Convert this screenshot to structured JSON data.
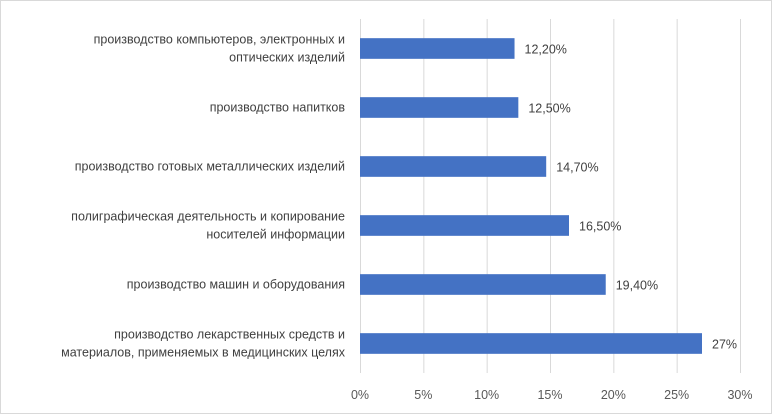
{
  "chart_data": {
    "type": "bar",
    "orientation": "horizontal",
    "title": "",
    "xlabel": "",
    "ylabel": "",
    "categories": [
      [
        "производство компьютеров, электронных и",
        "оптических изделий"
      ],
      [
        "производство напитков"
      ],
      [
        "производство готовых металлических изделий"
      ],
      [
        "полиграфическая деятельность и копирование",
        "носителей информации"
      ],
      [
        "производство машин и оборудования"
      ],
      [
        "производство лекарственных средств и",
        "материалов, применяемых в медицинских целях"
      ]
    ],
    "values": [
      12.2,
      12.5,
      14.7,
      16.5,
      19.4,
      27
    ],
    "data_labels": [
      "12,20%",
      "12,50%",
      "14,70%",
      "16,50%",
      "19,40%",
      "27%"
    ],
    "xlim": [
      0,
      30
    ],
    "x_ticks": [
      0,
      5,
      10,
      15,
      20,
      25,
      30
    ],
    "x_tick_labels": [
      "0%",
      "5%",
      "10%",
      "15%",
      "20%",
      "25%",
      "30%"
    ],
    "grid": "vertical",
    "legend": "none",
    "bar_color": "#4472C4",
    "grid_color": "#d9d9d9"
  }
}
